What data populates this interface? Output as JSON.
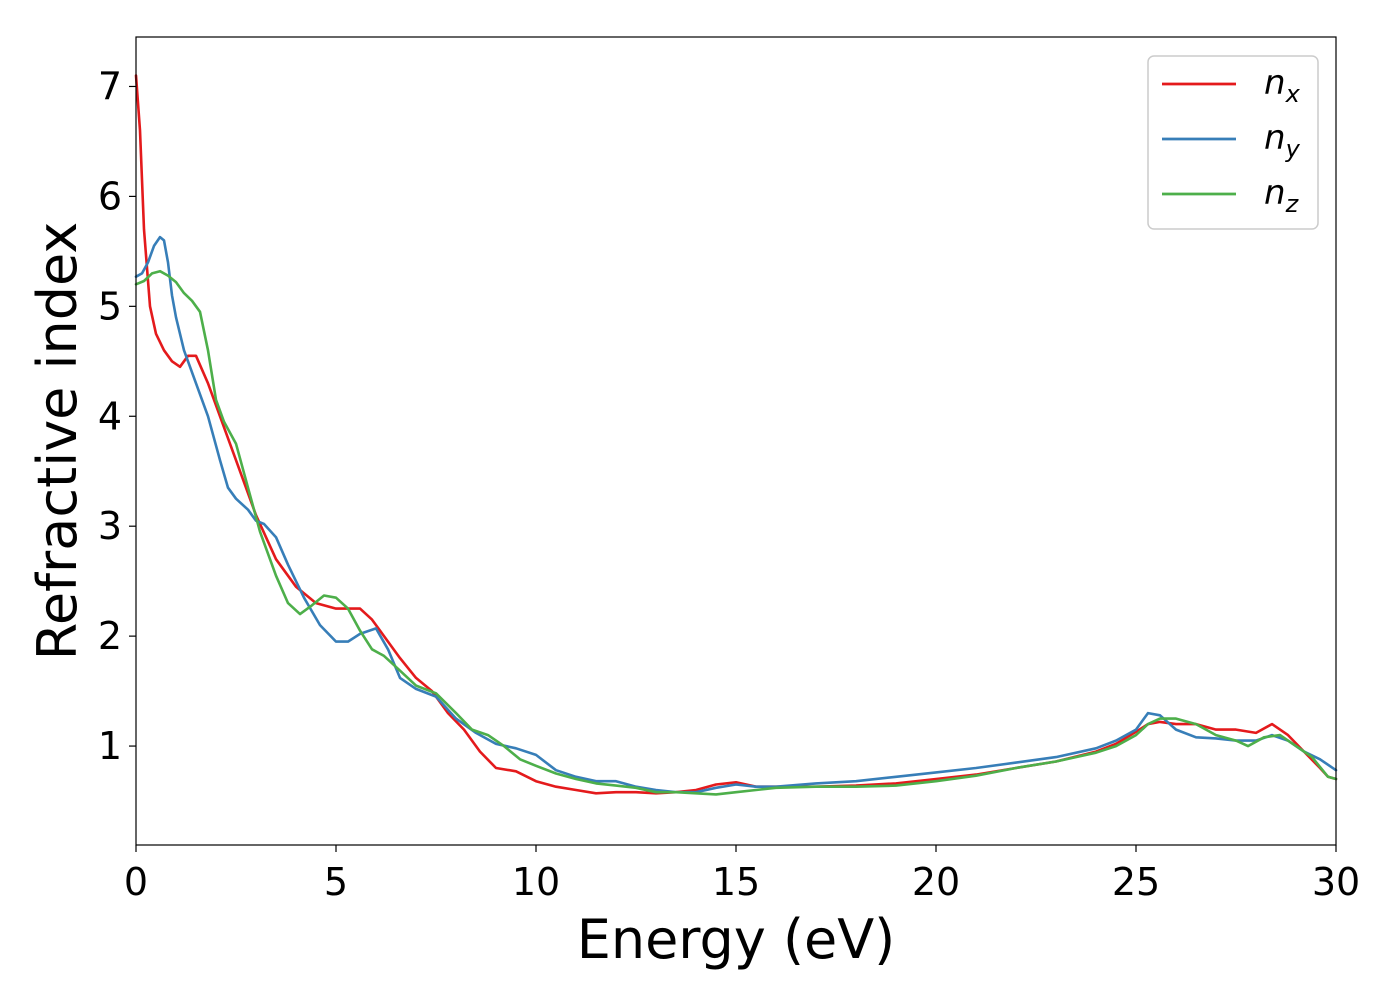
{
  "chart_data": {
    "type": "line",
    "title": "",
    "xlabel": "Energy (eV)",
    "ylabel": "Refractive index",
    "xlim": [
      0,
      30
    ],
    "ylim": [
      0.1,
      7.45
    ],
    "xticks": [
      0,
      5,
      10,
      15,
      20,
      25,
      30
    ],
    "xtick_labels": [
      "0",
      "5",
      "10",
      "15",
      "20",
      "25",
      "30"
    ],
    "yticks": [
      1,
      2,
      3,
      4,
      5,
      6,
      7
    ],
    "ytick_labels": [
      "1",
      "2",
      "3",
      "4",
      "5",
      "6",
      "7"
    ],
    "grid": false,
    "legend_position": "top-right",
    "series": [
      {
        "name": "n",
        "subscript": "x",
        "color": "#e41a1c",
        "x": [
          0,
          0.1,
          0.2,
          0.35,
          0.5,
          0.7,
          0.9,
          1.1,
          1.3,
          1.5,
          1.8,
          2.1,
          2.5,
          3.0,
          3.5,
          4.0,
          4.5,
          5.0,
          5.3,
          5.6,
          5.9,
          6.2,
          6.6,
          7.0,
          7.4,
          7.8,
          8.2,
          8.6,
          9.0,
          9.5,
          10.0,
          10.5,
          11.0,
          11.5,
          12.0,
          12.5,
          13.0,
          13.5,
          14.0,
          14.5,
          15.0,
          15.5,
          16.0,
          17.0,
          18.0,
          19.0,
          20.0,
          21.0,
          22.0,
          23.0,
          24.0,
          24.5,
          25.0,
          25.3,
          25.6,
          26.0,
          26.5,
          27.0,
          27.5,
          28.0,
          28.4,
          28.8,
          29.2,
          29.6,
          29.8,
          30.0
        ],
        "y": [
          7.1,
          6.6,
          5.7,
          5.0,
          4.75,
          4.6,
          4.5,
          4.45,
          4.55,
          4.55,
          4.3,
          4.0,
          3.6,
          3.1,
          2.7,
          2.45,
          2.3,
          2.25,
          2.25,
          2.25,
          2.15,
          2.0,
          1.8,
          1.62,
          1.5,
          1.3,
          1.15,
          0.95,
          0.8,
          0.77,
          0.68,
          0.63,
          0.6,
          0.57,
          0.58,
          0.58,
          0.57,
          0.58,
          0.6,
          0.65,
          0.67,
          0.63,
          0.63,
          0.63,
          0.64,
          0.66,
          0.7,
          0.74,
          0.8,
          0.86,
          0.95,
          1.02,
          1.13,
          1.2,
          1.22,
          1.2,
          1.2,
          1.15,
          1.15,
          1.12,
          1.2,
          1.1,
          0.95,
          0.8,
          0.72,
          0.7
        ]
      },
      {
        "name": "n",
        "subscript": "y",
        "color": "#377eb8",
        "x": [
          0,
          0.15,
          0.3,
          0.45,
          0.6,
          0.7,
          0.8,
          0.9,
          1.0,
          1.2,
          1.5,
          1.8,
          2.1,
          2.3,
          2.5,
          2.8,
          3.0,
          3.2,
          3.5,
          3.8,
          4.2,
          4.6,
          5.0,
          5.3,
          5.6,
          6.0,
          6.3,
          6.6,
          7.0,
          7.5,
          8.0,
          8.5,
          9.0,
          9.5,
          10.0,
          10.5,
          11.0,
          11.5,
          12.0,
          12.5,
          13.0,
          13.5,
          14.0,
          14.5,
          15.0,
          15.5,
          16.0,
          17.0,
          18.0,
          19.0,
          20.0,
          21.0,
          22.0,
          23.0,
          24.0,
          24.5,
          25.0,
          25.3,
          25.6,
          26.0,
          26.5,
          27.0,
          27.5,
          28.0,
          28.4,
          28.8,
          29.2,
          29.6,
          30.0
        ],
        "y": [
          5.27,
          5.3,
          5.4,
          5.55,
          5.63,
          5.6,
          5.4,
          5.1,
          4.9,
          4.6,
          4.3,
          4.0,
          3.6,
          3.35,
          3.25,
          3.15,
          3.05,
          3.02,
          2.9,
          2.65,
          2.35,
          2.1,
          1.95,
          1.95,
          2.02,
          2.07,
          1.88,
          1.62,
          1.52,
          1.45,
          1.25,
          1.12,
          1.02,
          0.98,
          0.92,
          0.78,
          0.72,
          0.68,
          0.68,
          0.63,
          0.6,
          0.58,
          0.58,
          0.62,
          0.65,
          0.63,
          0.63,
          0.66,
          0.68,
          0.72,
          0.76,
          0.8,
          0.85,
          0.9,
          0.98,
          1.05,
          1.15,
          1.3,
          1.28,
          1.15,
          1.08,
          1.07,
          1.05,
          1.05,
          1.1,
          1.05,
          0.95,
          0.88,
          0.78
        ]
      },
      {
        "name": "n",
        "subscript": "z",
        "color": "#4daf4a",
        "x": [
          0,
          0.2,
          0.4,
          0.6,
          0.8,
          1.0,
          1.2,
          1.4,
          1.6,
          1.8,
          2.0,
          2.2,
          2.5,
          2.8,
          3.1,
          3.5,
          3.8,
          4.1,
          4.4,
          4.7,
          5.0,
          5.3,
          5.6,
          5.9,
          6.2,
          6.5,
          7.0,
          7.5,
          8.0,
          8.4,
          8.8,
          9.2,
          9.6,
          10.0,
          10.5,
          11.0,
          11.5,
          12.0,
          12.5,
          13.0,
          13.5,
          14.0,
          14.5,
          15.0,
          15.5,
          16.0,
          17.0,
          18.0,
          19.0,
          20.0,
          21.0,
          22.0,
          23.0,
          24.0,
          24.5,
          25.0,
          25.3,
          25.6,
          26.0,
          26.5,
          27.0,
          27.5,
          27.8,
          28.2,
          28.6,
          29.0,
          29.4,
          29.8,
          30.0
        ],
        "y": [
          5.2,
          5.23,
          5.3,
          5.32,
          5.28,
          5.22,
          5.12,
          5.05,
          4.95,
          4.6,
          4.15,
          3.95,
          3.75,
          3.35,
          2.95,
          2.55,
          2.3,
          2.2,
          2.28,
          2.37,
          2.35,
          2.25,
          2.05,
          1.88,
          1.82,
          1.72,
          1.55,
          1.48,
          1.3,
          1.15,
          1.1,
          1.0,
          0.88,
          0.82,
          0.75,
          0.7,
          0.66,
          0.64,
          0.62,
          0.58,
          0.58,
          0.57,
          0.56,
          0.58,
          0.6,
          0.62,
          0.63,
          0.63,
          0.64,
          0.68,
          0.73,
          0.8,
          0.86,
          0.94,
          1.0,
          1.1,
          1.2,
          1.25,
          1.25,
          1.2,
          1.1,
          1.05,
          1.0,
          1.08,
          1.1,
          1.0,
          0.9,
          0.72,
          0.7
        ]
      }
    ]
  }
}
